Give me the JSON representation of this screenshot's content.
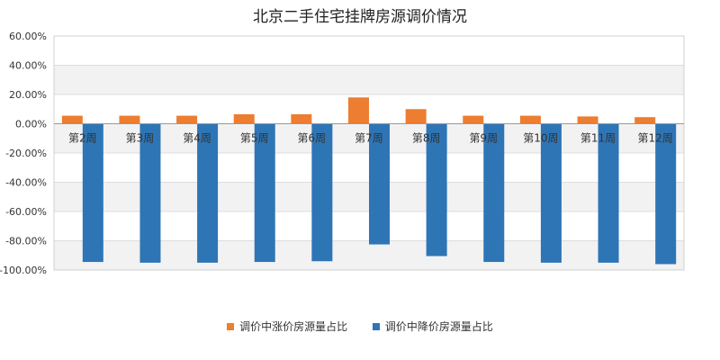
{
  "chart_data": {
    "type": "bar",
    "title": "北京二手住宅挂牌房源调价情况",
    "categories": [
      "第2周",
      "第3周",
      "第4周",
      "第5周",
      "第6周",
      "第7周",
      "第8周",
      "第9周",
      "第10周",
      "第11周",
      "第12周"
    ],
    "series": [
      {
        "name": "调价中涨价房源量占比",
        "color": "#ed7d31",
        "values": [
          5.5,
          5.5,
          5.5,
          6.5,
          6.5,
          18.0,
          10.0,
          5.5,
          5.5,
          5.0,
          4.5
        ]
      },
      {
        "name": "调价中降价房源量占比",
        "color": "#2e75b6",
        "values": [
          -94.5,
          -95.0,
          -95.0,
          -94.5,
          -94.0,
          -82.5,
          -90.5,
          -94.5,
          -95.0,
          -95.0,
          -96.0
        ]
      }
    ],
    "ylim": [
      -100,
      60
    ],
    "yticks": [
      "60.00%",
      "40.00%",
      "20.00%",
      "0.00%",
      "-20.00%",
      "-40.00%",
      "-60.00%",
      "-80.00%",
      "-100.00%"
    ],
    "ytick_values": [
      60,
      40,
      20,
      0,
      -20,
      -40,
      -60,
      -80,
      -100
    ],
    "xlabel": "",
    "ylabel": "",
    "grid": true,
    "legend": "bottom"
  }
}
